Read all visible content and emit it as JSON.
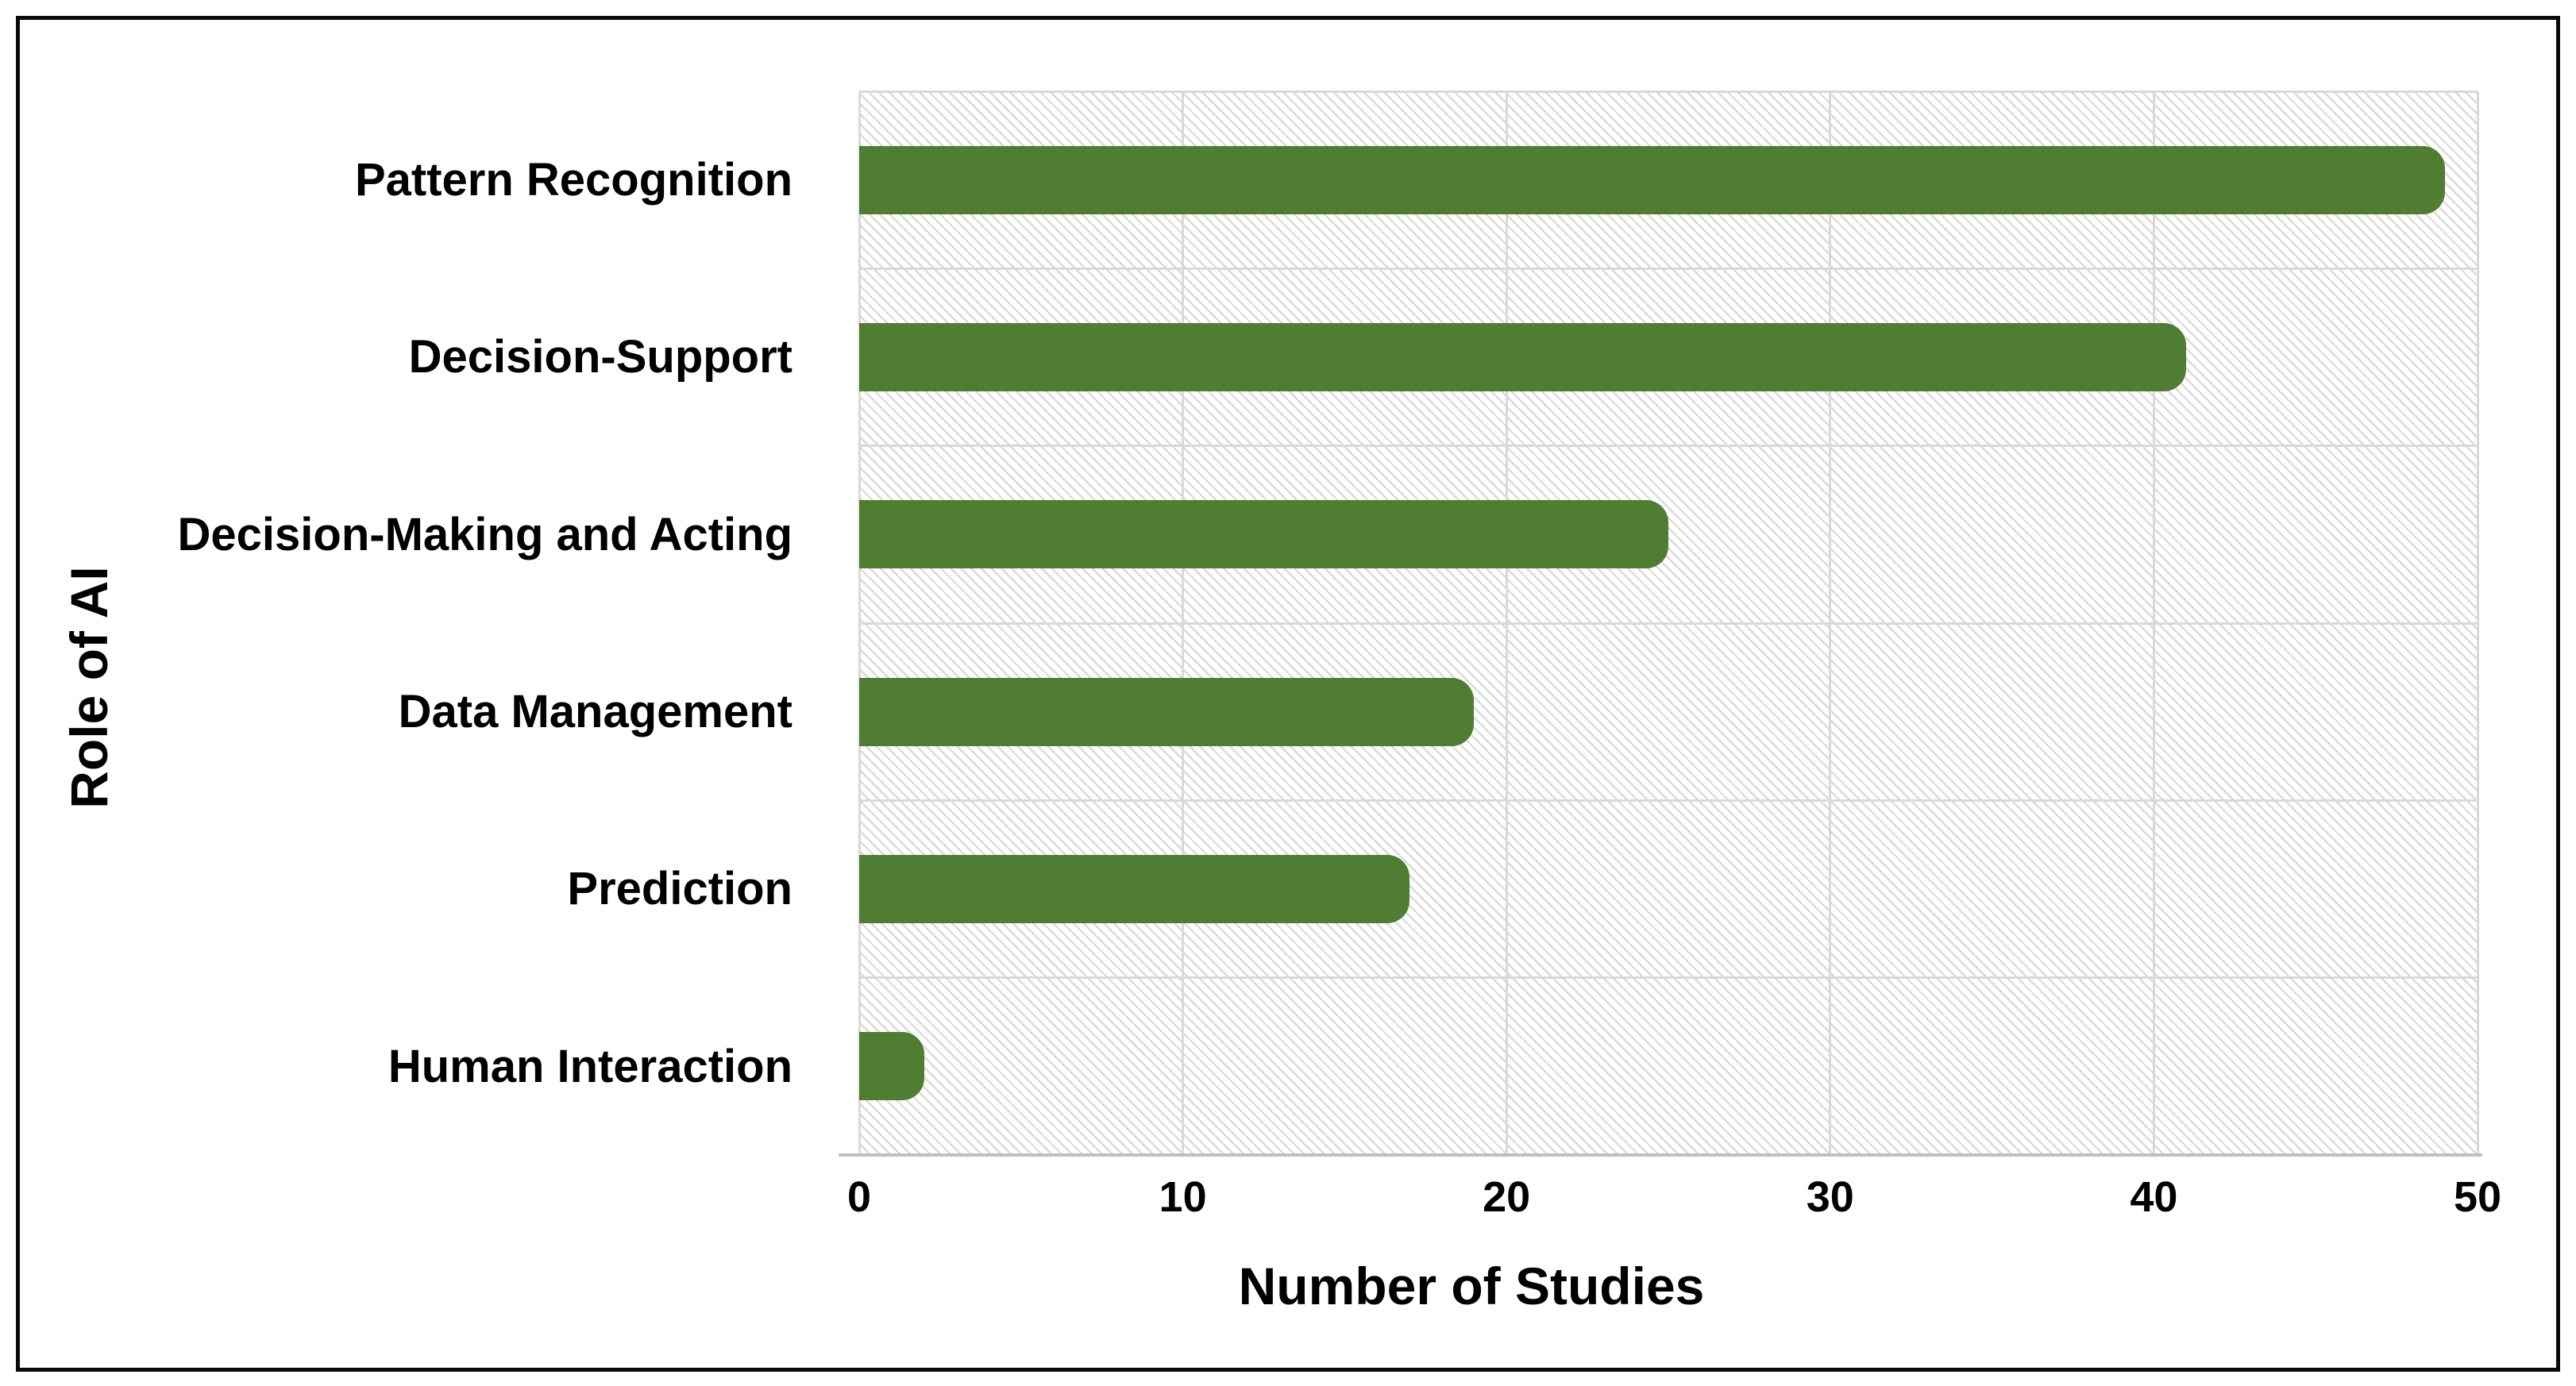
{
  "figure": {
    "border_color": "#0a0a0a",
    "background": "#ffffff"
  },
  "colors": {
    "bar": "#4f7d31",
    "gridline": "#d9d9d9",
    "hatch": "#dadada",
    "axis_line": "#bfbfbf",
    "text": "#000000"
  },
  "chart_data": {
    "type": "bar",
    "orientation": "horizontal",
    "title": "",
    "xlabel": "Number of Studies",
    "ylabel": "Role of AI",
    "categories": [
      "Pattern Recognition",
      "Decision-Support",
      "Decision-Making and Acting",
      "Data Management",
      "Prediction",
      "Human Interaction"
    ],
    "values": [
      49,
      41,
      25,
      19,
      17,
      2
    ],
    "xlim": [
      0,
      50
    ],
    "xticks": [
      0,
      10,
      20,
      30,
      40,
      50
    ],
    "grid": true,
    "legend": "none",
    "plot_background": "diagonal-hatch",
    "bar_color": "#4f7d31"
  }
}
